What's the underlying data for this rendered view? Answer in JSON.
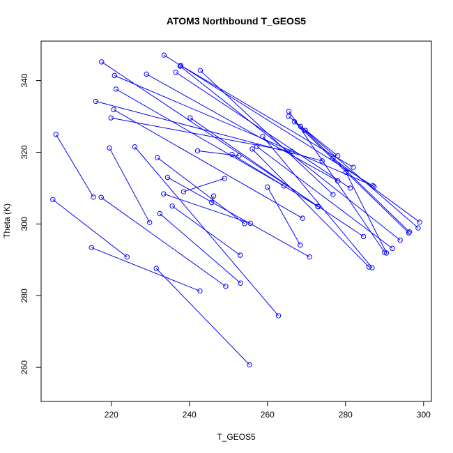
{
  "chart_data": {
    "type": "line",
    "title": "ATOM3 Northbound T_GEOS5",
    "xlabel": "T_GEOS5",
    "ylabel": "Theta (K)",
    "xlim": [
      202,
      302
    ],
    "ylim": [
      250.5,
      351
    ],
    "xticks": [
      220,
      240,
      260,
      280,
      300
    ],
    "yticks": [
      260,
      280,
      300,
      320,
      340
    ],
    "series": [
      {
        "color": "#0000ff",
        "marker": "open-circle",
        "points": [
          [
            205.8,
            325.0
          ],
          [
            215.4,
            307.5
          ],
          [
            205.0,
            306.8
          ],
          [
            224.0,
            290.8
          ],
          [
            214.9,
            293.4
          ],
          [
            242.7,
            281.3
          ],
          [
            231.5,
            287.6
          ],
          [
            255.4,
            260.7
          ],
          [
            217.4,
            307.4
          ],
          [
            249.3,
            282.6
          ],
          [
            226.0,
            321.5
          ],
          [
            262.8,
            274.4
          ],
          [
            219.5,
            321.2
          ],
          [
            229.8,
            300.4
          ],
          [
            232.4,
            302.9
          ],
          [
            253.1,
            283.5
          ],
          [
            231.8,
            318.5
          ],
          [
            254.1,
            300.1
          ],
          [
            235.6,
            305.0
          ],
          [
            253.0,
            291.3
          ],
          [
            233.4,
            308.4
          ],
          [
            255.6,
            300.2
          ],
          [
            238.5,
            309.0
          ],
          [
            249.0,
            312.7
          ],
          [
            245.7,
            306.0
          ],
          [
            246.2,
            307.8
          ],
          [
            260.0,
            310.3
          ],
          [
            268.4,
            294.1
          ],
          [
            234.4,
            313.0
          ],
          [
            270.8,
            290.8
          ],
          [
            216.0,
            334.2
          ],
          [
            274.0,
            317.6
          ],
          [
            219.9,
            329.6
          ],
          [
            266.2,
            320.2
          ],
          [
            220.6,
            331.9
          ],
          [
            269.0,
            301.6
          ],
          [
            221.2,
            337.6
          ],
          [
            264.2,
            310.6
          ],
          [
            240.2,
            329.6
          ],
          [
            273.0,
            304.8
          ],
          [
            242.1,
            320.4
          ],
          [
            252.7,
            319.0
          ],
          [
            250.9,
            319.4
          ],
          [
            272.9,
            304.9
          ],
          [
            256.1,
            320.9
          ],
          [
            286.0,
            288.0
          ],
          [
            229.0,
            341.8
          ],
          [
            278.0,
            312.0
          ],
          [
            236.5,
            342.3
          ],
          [
            281.2,
            310.0
          ],
          [
            220.8,
            341.4
          ],
          [
            287.0,
            310.7
          ],
          [
            237.6,
            344.0
          ],
          [
            294.0,
            295.5
          ],
          [
            217.5,
            345.2
          ],
          [
            284.6,
            296.5
          ],
          [
            258.8,
            324.4
          ],
          [
            286.8,
            287.8
          ],
          [
            257.3,
            321.6
          ],
          [
            292.0,
            293.2
          ],
          [
            265.5,
            331.4
          ],
          [
            290.0,
            292.1
          ],
          [
            266.9,
            328.5
          ],
          [
            296.2,
            297.5
          ],
          [
            269.7,
            326.1
          ],
          [
            298.6,
            298.9
          ],
          [
            268.5,
            327.2
          ],
          [
            296.4,
            297.8
          ],
          [
            276.8,
            318.3
          ],
          [
            299.0,
            300.5
          ],
          [
            280.1,
            314.4
          ],
          [
            290.5,
            291.9
          ],
          [
            242.8,
            342.8
          ],
          [
            276.8,
            308.2
          ],
          [
            265.4,
            330.0
          ],
          [
            278.0,
            319.0
          ],
          [
            237.8,
            344.2
          ],
          [
            282.0,
            315.8
          ],
          [
            233.5,
            347.1
          ],
          [
            287.3,
            310.4
          ]
        ]
      }
    ]
  }
}
